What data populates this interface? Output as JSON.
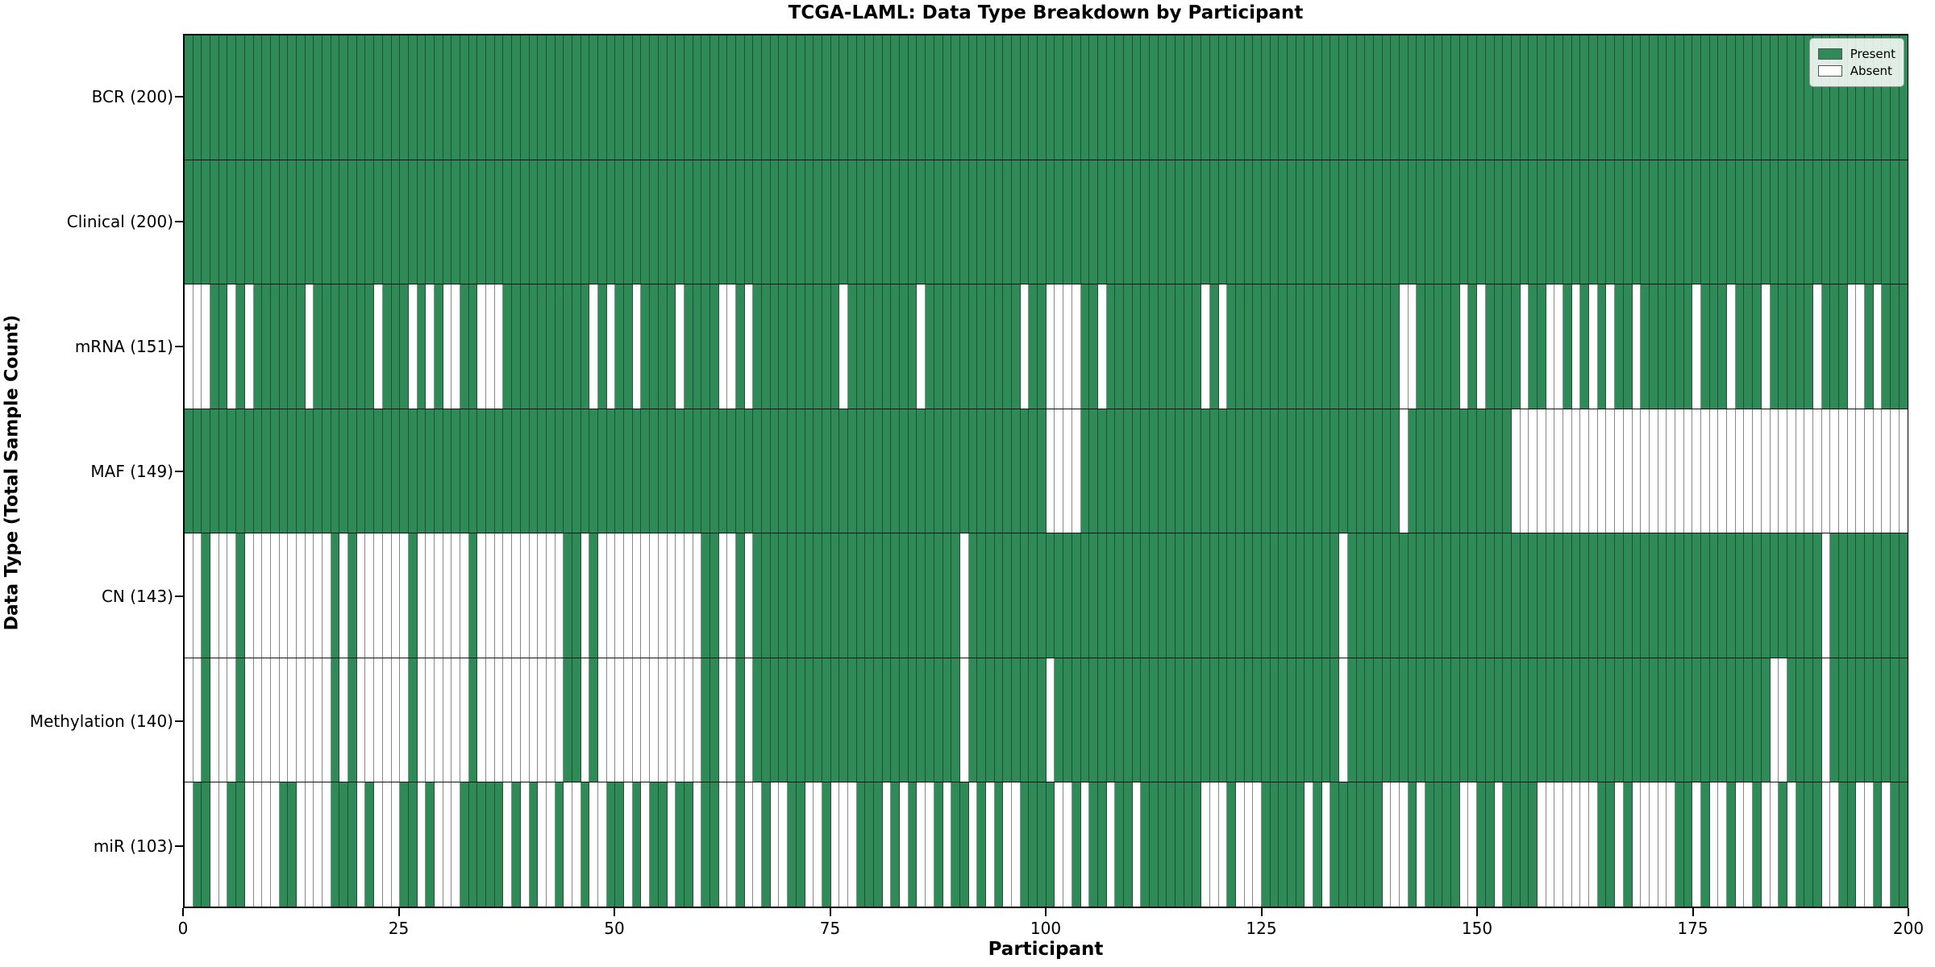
{
  "figure": {
    "title": "TCGA-LAML: Data Type Breakdown by Participant"
  },
  "chart_data": {
    "type": "heatmap",
    "title": "TCGA-LAML: Data Type Breakdown by Participant",
    "xlabel": "Participant",
    "ylabel": "Data Type (Total Sample Count)",
    "x_ticks": [
      0,
      25,
      50,
      75,
      100,
      125,
      150,
      175,
      200
    ],
    "x_range": [
      0,
      200
    ],
    "n_participants": 200,
    "grid": false,
    "legend_position": "upper right",
    "legend": [
      {
        "label": "Present",
        "color": "#2e8b57"
      },
      {
        "label": "Absent",
        "color": "#ffffff"
      }
    ],
    "colors": {
      "present": "#2e8b57",
      "absent": "#ffffff",
      "cell_edge": "rgba(20,20,20,0.5)"
    },
    "rows": [
      {
        "label": "BCR (200)",
        "name": "BCR",
        "present_count": 200,
        "absent_participants": []
      },
      {
        "label": "Clinical (200)",
        "name": "Clinical",
        "present_count": 200,
        "absent_participants": []
      },
      {
        "label": "mRNA (151)",
        "name": "mRNA",
        "present_count": 151,
        "absent_participants": [
          0,
          1,
          2,
          5,
          7,
          14,
          22,
          26,
          28,
          30,
          31,
          34,
          35,
          36,
          47,
          49,
          52,
          57,
          62,
          63,
          65,
          76,
          85,
          97,
          100,
          101,
          102,
          103,
          106,
          118,
          120,
          141,
          142,
          148,
          150,
          155,
          158,
          159,
          161,
          163,
          165,
          168,
          175,
          179,
          183,
          189,
          193,
          194,
          196
        ]
      },
      {
        "label": "MAF (149)",
        "name": "MAF",
        "present_count": 149,
        "absent_participants": [
          100,
          101,
          102,
          103,
          141,
          154,
          155,
          156,
          157,
          158,
          159,
          160,
          161,
          162,
          163,
          164,
          165,
          166,
          167,
          168,
          169,
          170,
          171,
          172,
          173,
          174,
          175,
          176,
          177,
          178,
          179,
          180,
          181,
          182,
          183,
          184,
          185,
          186,
          187,
          188,
          189,
          190,
          191,
          192,
          193,
          194,
          195,
          196,
          197,
          198,
          199
        ]
      },
      {
        "label": "CN (143)",
        "name": "CN",
        "present_count": 143,
        "absent_participants": [
          0,
          1,
          3,
          4,
          5,
          7,
          8,
          9,
          10,
          11,
          12,
          13,
          14,
          15,
          16,
          18,
          20,
          21,
          22,
          23,
          24,
          25,
          27,
          28,
          29,
          30,
          31,
          32,
          34,
          35,
          36,
          37,
          38,
          39,
          40,
          41,
          42,
          43,
          46,
          48,
          49,
          50,
          51,
          52,
          53,
          54,
          55,
          56,
          57,
          58,
          59,
          62,
          63,
          65,
          90,
          134,
          190
        ]
      },
      {
        "label": "Methylation (140)",
        "name": "Methylation",
        "present_count": 140,
        "absent_participants": [
          0,
          1,
          3,
          4,
          5,
          7,
          8,
          9,
          10,
          11,
          12,
          13,
          14,
          15,
          16,
          18,
          20,
          21,
          22,
          23,
          24,
          25,
          27,
          28,
          29,
          30,
          31,
          32,
          34,
          35,
          36,
          37,
          38,
          39,
          40,
          41,
          42,
          43,
          46,
          48,
          49,
          50,
          51,
          52,
          53,
          54,
          55,
          56,
          57,
          58,
          59,
          62,
          63,
          65,
          90,
          100,
          134,
          184,
          185,
          190
        ]
      },
      {
        "label": "miR (103)",
        "name": "miR",
        "present_count": 103,
        "absent_participants": [
          0,
          3,
          4,
          7,
          8,
          9,
          10,
          13,
          14,
          15,
          16,
          20,
          22,
          23,
          24,
          27,
          29,
          30,
          31,
          37,
          39,
          41,
          42,
          44,
          45,
          47,
          48,
          51,
          53,
          56,
          59,
          62,
          63,
          65,
          66,
          68,
          69,
          72,
          73,
          75,
          76,
          77,
          81,
          83,
          85,
          86,
          88,
          91,
          93,
          95,
          96,
          101,
          102,
          104,
          107,
          110,
          118,
          119,
          120,
          122,
          123,
          124,
          130,
          132,
          139,
          140,
          141,
          143,
          148,
          149,
          152,
          157,
          158,
          159,
          160,
          161,
          162,
          163,
          166,
          168,
          169,
          170,
          171,
          172,
          175,
          177,
          178,
          180,
          181,
          183,
          184,
          186,
          190,
          191,
          194,
          195,
          197
        ]
      }
    ]
  }
}
